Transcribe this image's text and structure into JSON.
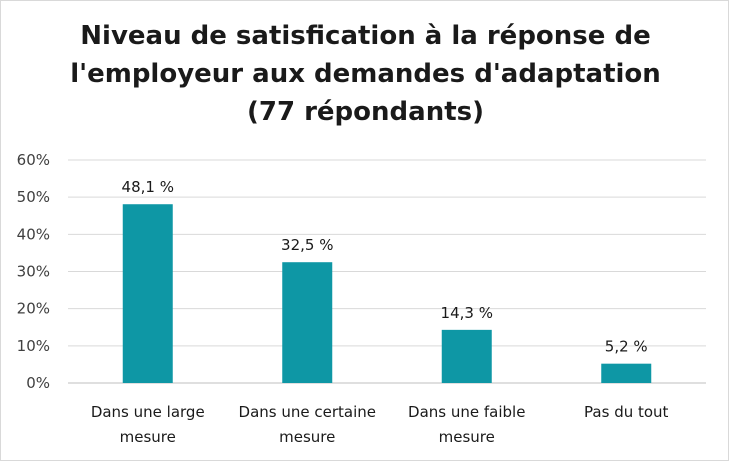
{
  "chart_data": {
    "type": "bar",
    "title": "Niveau de satisfication à la réponse de l'employeur aux demandes d'adaptation (77 répondants)",
    "title_lines": [
      "Niveau de satisfication à la réponse de",
      "l'employeur aux demandes d'adaptation",
      "(77 répondants)"
    ],
    "categories": [
      [
        "Dans une large",
        "mesure"
      ],
      [
        "Dans une certaine",
        "mesure"
      ],
      [
        "Dans une faible",
        "mesure"
      ],
      [
        "Pas du tout"
      ]
    ],
    "values": [
      48.1,
      32.5,
      14.3,
      5.2
    ],
    "data_labels": [
      "48,1 %",
      "32,5 %",
      "14,3 %",
      "5,2 %"
    ],
    "ylim": [
      0,
      60
    ],
    "yticks": [
      0,
      10,
      20,
      30,
      40,
      50,
      60
    ],
    "ytick_labels": [
      "0%",
      "10%",
      "20%",
      "30%",
      "40%",
      "50%",
      "60%"
    ],
    "bar_color": "#0e97a5",
    "grid": true,
    "legend": "none"
  }
}
